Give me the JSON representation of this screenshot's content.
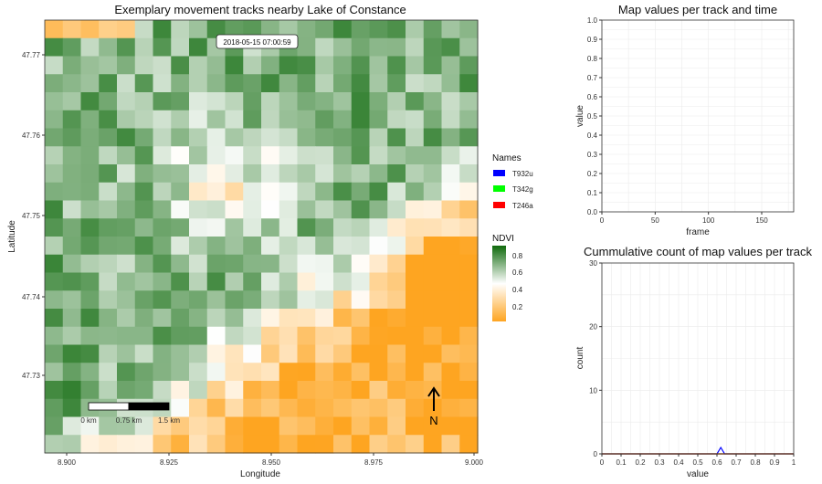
{
  "colors": {
    "ndvi_low": "#fea521",
    "ndvi_mid": "#ffffff",
    "ndvi_high": "#0f6a0c",
    "track_T932u": "#0000ff",
    "track_T342g": "#00ff00",
    "track_T246a": "#ff0000",
    "grid": "#ebebeb"
  },
  "map": {
    "title": "Exemplary movement tracks nearby Lake of Constance",
    "timestamp": "2018-05-15 07:00:59",
    "xlabel": "Longitude",
    "ylabel": "Latitude",
    "x_ticks": [
      "8.900",
      "8.925",
      "8.950",
      "8.975",
      "9.000"
    ],
    "y_ticks": [
      "47.73",
      "47.74",
      "47.75",
      "47.76",
      "47.77"
    ],
    "scalebar_labels": [
      "0 km",
      "0.75 km",
      "1.5 km"
    ],
    "north_label": "N"
  },
  "legend": {
    "names_title": "Names",
    "names": [
      "T932u",
      "T342g",
      "T246a"
    ],
    "ndvi_title": "NDVI",
    "ndvi_ticks": [
      "0.8",
      "0.6",
      "0.4",
      "0.2"
    ]
  },
  "chart_data": [
    {
      "type": "line",
      "title": "Map values per track and time",
      "xlabel": "frame",
      "ylabel": "value",
      "xlim": [
        0,
        180
      ],
      "ylim": [
        0,
        1
      ],
      "x_ticks": [
        "0",
        "50",
        "100",
        "150"
      ],
      "y_ticks": [
        "0.0",
        "0.1",
        "0.2",
        "0.3",
        "0.4",
        "0.5",
        "0.6",
        "0.7",
        "0.8",
        "0.9",
        "1.0"
      ],
      "grid": true,
      "series": []
    },
    {
      "type": "line",
      "title": "Cummulative count of map values per track",
      "xlabel": "value",
      "ylabel": "count",
      "xlim": [
        0,
        1
      ],
      "ylim": [
        0,
        30
      ],
      "x_ticks": [
        "0",
        "0.1",
        "0.2",
        "0.3",
        "0.4",
        "0.5",
        "0.6",
        "0.7",
        "0.8",
        "0.9",
        "1"
      ],
      "y_ticks": [
        "0",
        "10",
        "20",
        "30"
      ],
      "grid": true,
      "series": [
        {
          "color_key": "track_T932u",
          "x": [
            0,
            0.6,
            0.62,
            0.64,
            1
          ],
          "y": [
            0,
            0,
            1,
            0,
            0
          ]
        },
        {
          "color_key": "track_T342g",
          "x": [
            0,
            1
          ],
          "y": [
            0,
            0
          ]
        },
        {
          "color_key": "track_T246a",
          "x": [
            0,
            1
          ],
          "y": [
            0,
            0
          ]
        }
      ]
    }
  ]
}
